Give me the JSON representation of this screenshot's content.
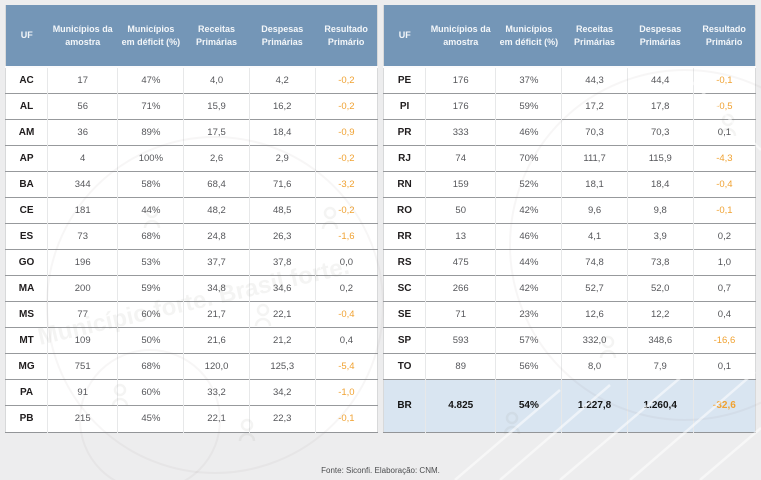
{
  "columns": [
    "UF",
    "Municípios da amostra",
    "Municípios em déficit (%)",
    "Receitas Primárias",
    "Despesas Primárias",
    "Resultado Primário"
  ],
  "tables": {
    "left": {
      "rows": [
        {
          "uf": "AC",
          "amostra": "17",
          "deficit": "47%",
          "receitas": "4,0",
          "despesas": "4,2",
          "resultado": "-0,2"
        },
        {
          "uf": "AL",
          "amostra": "56",
          "deficit": "71%",
          "receitas": "15,9",
          "despesas": "16,2",
          "resultado": "-0,2"
        },
        {
          "uf": "AM",
          "amostra": "36",
          "deficit": "89%",
          "receitas": "17,5",
          "despesas": "18,4",
          "resultado": "-0,9"
        },
        {
          "uf": "AP",
          "amostra": "4",
          "deficit": "100%",
          "receitas": "2,6",
          "despesas": "2,9",
          "resultado": "-0,2"
        },
        {
          "uf": "BA",
          "amostra": "344",
          "deficit": "58%",
          "receitas": "68,4",
          "despesas": "71,6",
          "resultado": "-3,2"
        },
        {
          "uf": "CE",
          "amostra": "181",
          "deficit": "44%",
          "receitas": "48,2",
          "despesas": "48,5",
          "resultado": "-0,2"
        },
        {
          "uf": "ES",
          "amostra": "73",
          "deficit": "68%",
          "receitas": "24,8",
          "despesas": "26,3",
          "resultado": "-1,6"
        },
        {
          "uf": "GO",
          "amostra": "196",
          "deficit": "53%",
          "receitas": "37,7",
          "despesas": "37,8",
          "resultado": "0,0"
        },
        {
          "uf": "MA",
          "amostra": "200",
          "deficit": "59%",
          "receitas": "34,8",
          "despesas": "34,6",
          "resultado": "0,2"
        },
        {
          "uf": "MS",
          "amostra": "77",
          "deficit": "60%",
          "receitas": "21,7",
          "despesas": "22,1",
          "resultado": "-0,4"
        },
        {
          "uf": "MT",
          "amostra": "109",
          "deficit": "50%",
          "receitas": "21,6",
          "despesas": "21,2",
          "resultado": "0,4"
        },
        {
          "uf": "MG",
          "amostra": "751",
          "deficit": "68%",
          "receitas": "120,0",
          "despesas": "125,3",
          "resultado": "-5,4"
        },
        {
          "uf": "PA",
          "amostra": "91",
          "deficit": "60%",
          "receitas": "33,2",
          "despesas": "34,2",
          "resultado": "-1,0"
        },
        {
          "uf": "PB",
          "amostra": "215",
          "deficit": "45%",
          "receitas": "22,1",
          "despesas": "22,3",
          "resultado": "-0,1"
        }
      ]
    },
    "right": {
      "rows": [
        {
          "uf": "PE",
          "amostra": "176",
          "deficit": "37%",
          "receitas": "44,3",
          "despesas": "44,4",
          "resultado": "-0,1"
        },
        {
          "uf": "PI",
          "amostra": "176",
          "deficit": "59%",
          "receitas": "17,2",
          "despesas": "17,8",
          "resultado": "-0,5"
        },
        {
          "uf": "PR",
          "amostra": "333",
          "deficit": "46%",
          "receitas": "70,3",
          "despesas": "70,3",
          "resultado": "0,1"
        },
        {
          "uf": "RJ",
          "amostra": "74",
          "deficit": "70%",
          "receitas": "111,7",
          "despesas": "115,9",
          "resultado": "-4,3"
        },
        {
          "uf": "RN",
          "amostra": "159",
          "deficit": "52%",
          "receitas": "18,1",
          "despesas": "18,4",
          "resultado": "-0,4"
        },
        {
          "uf": "RO",
          "amostra": "50",
          "deficit": "42%",
          "receitas": "9,6",
          "despesas": "9,8",
          "resultado": "-0,1"
        },
        {
          "uf": "RR",
          "amostra": "13",
          "deficit": "46%",
          "receitas": "4,1",
          "despesas": "3,9",
          "resultado": "0,2"
        },
        {
          "uf": "RS",
          "amostra": "475",
          "deficit": "44%",
          "receitas": "74,8",
          "despesas": "73,8",
          "resultado": "1,0"
        },
        {
          "uf": "SC",
          "amostra": "266",
          "deficit": "42%",
          "receitas": "52,7",
          "despesas": "52,0",
          "resultado": "0,7"
        },
        {
          "uf": "SE",
          "amostra": "71",
          "deficit": "23%",
          "receitas": "12,6",
          "despesas": "12,2",
          "resultado": "0,4"
        },
        {
          "uf": "SP",
          "amostra": "593",
          "deficit": "57%",
          "receitas": "332,0",
          "despesas": "348,6",
          "resultado": "-16,6"
        },
        {
          "uf": "TO",
          "amostra": "89",
          "deficit": "56%",
          "receitas": "8,0",
          "despesas": "7,9",
          "resultado": "0,1"
        }
      ],
      "total": {
        "uf": "BR",
        "amostra": "4.825",
        "deficit": "54%",
        "receitas": "1.227,8",
        "despesas": "1.260,4",
        "resultado": "-32,6"
      }
    }
  },
  "footer": {
    "text": "Fonte: Siconfi. Elaboração: CNM."
  },
  "watermark": {
    "text": "Município forte. Brasil forte."
  },
  "colors": {
    "header_bg": "#7496b7",
    "negative_value": "#f0a232",
    "total_row_bg": "#d9e5f1",
    "page_bg": "#ededee"
  }
}
